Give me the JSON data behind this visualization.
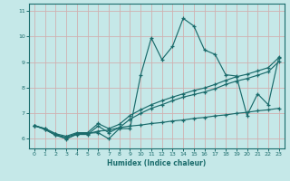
{
  "xlabel": "Humidex (Indice chaleur)",
  "xlim": [
    -0.5,
    23.5
  ],
  "ylim": [
    5.6,
    11.3
  ],
  "xticks": [
    0,
    1,
    2,
    3,
    4,
    5,
    6,
    7,
    8,
    9,
    10,
    11,
    12,
    13,
    14,
    15,
    16,
    17,
    18,
    19,
    20,
    21,
    22,
    23
  ],
  "yticks": [
    6,
    7,
    8,
    9,
    10,
    11
  ],
  "bg_color": "#c5e8e8",
  "grid_color": "#afd4d4",
  "line_color": "#1a6b6b",
  "line1_y": [
    6.5,
    6.38,
    6.18,
    5.97,
    6.18,
    6.2,
    6.22,
    5.98,
    6.38,
    6.38,
    8.48,
    9.95,
    9.1,
    9.62,
    10.72,
    10.42,
    9.48,
    9.3,
    8.5,
    8.45,
    6.9,
    7.75,
    7.32,
    9.2
  ],
  "line2_y": [
    6.5,
    6.38,
    6.18,
    6.08,
    6.22,
    6.22,
    6.58,
    6.38,
    6.55,
    6.9,
    7.12,
    7.32,
    7.48,
    7.62,
    7.75,
    7.88,
    7.98,
    8.12,
    8.28,
    8.42,
    8.52,
    8.65,
    8.78,
    9.18
  ],
  "line3_y": [
    6.5,
    6.35,
    6.12,
    5.98,
    6.15,
    6.15,
    6.48,
    6.22,
    6.42,
    6.75,
    6.98,
    7.18,
    7.32,
    7.48,
    7.62,
    7.72,
    7.82,
    7.95,
    8.12,
    8.25,
    8.35,
    8.48,
    8.62,
    9.02
  ],
  "line4_y": [
    6.5,
    6.35,
    6.12,
    6.05,
    6.18,
    6.18,
    6.28,
    6.32,
    6.42,
    6.48,
    6.52,
    6.58,
    6.62,
    6.68,
    6.72,
    6.78,
    6.82,
    6.88,
    6.92,
    6.98,
    7.02,
    7.08,
    7.12,
    7.18
  ]
}
